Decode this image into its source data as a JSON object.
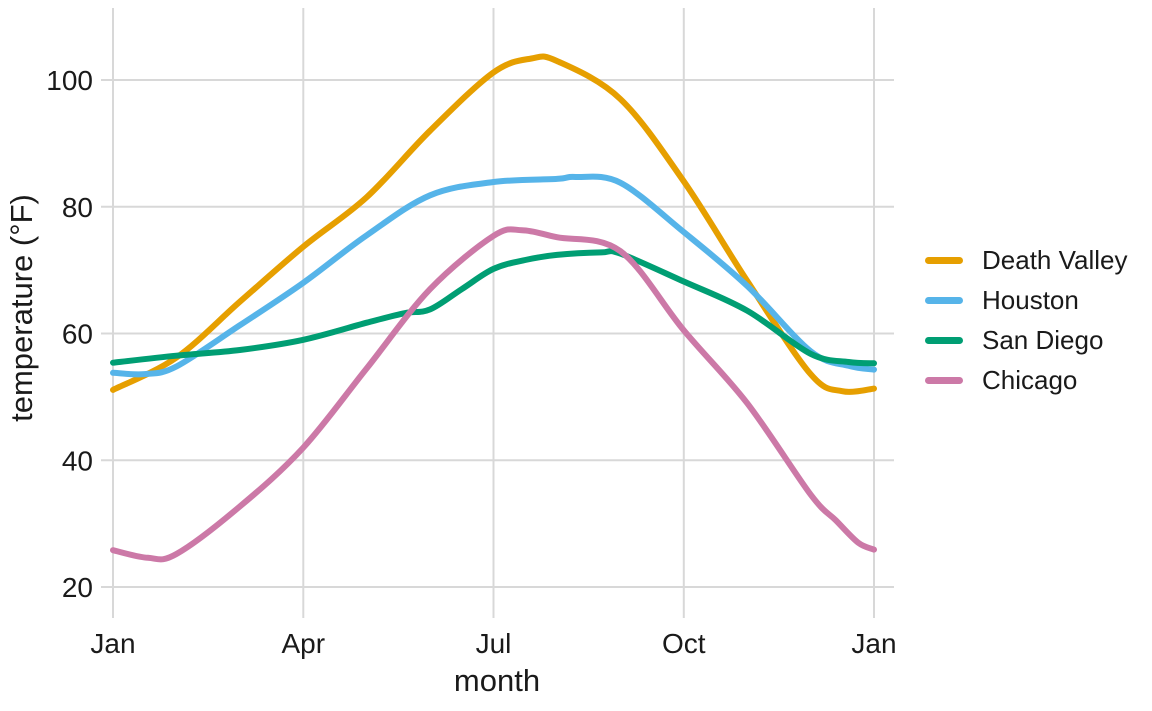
{
  "chart_data": {
    "type": "line",
    "title": "",
    "xlabel": "month",
    "ylabel": "temperature (°F)",
    "x_axis": {
      "note": "x in month units, 0 = Jan 1 through 12 = following Jan 1",
      "ticks": [
        {
          "pos": 0,
          "label": "Jan"
        },
        {
          "pos": 3,
          "label": "Apr"
        },
        {
          "pos": 6,
          "label": "Jul"
        },
        {
          "pos": 9,
          "label": "Oct"
        },
        {
          "pos": 12,
          "label": "Jan"
        }
      ]
    },
    "y_axis": {
      "ticks": [
        20,
        40,
        60,
        80,
        100
      ],
      "range_shown": [
        15,
        111
      ]
    },
    "grid": true,
    "legend_position": "right",
    "style": {
      "grid_color": "#d8d8d8",
      "text_color": "#1a1a1a",
      "background": "#ffffff",
      "line_width": 6
    },
    "series": [
      {
        "name": "Death Valley",
        "color": "#E69F00",
        "points": [
          [
            0,
            51.1
          ],
          [
            1,
            56.2
          ],
          [
            2,
            65.0
          ],
          [
            3,
            73.7
          ],
          [
            4,
            81.5
          ],
          [
            5,
            92.0
          ],
          [
            6,
            101.2
          ],
          [
            6.6,
            103.4
          ],
          [
            7,
            103.0
          ],
          [
            8,
            97.0
          ],
          [
            9,
            84.0
          ],
          [
            10,
            68.3
          ],
          [
            11,
            53.6
          ],
          [
            11.5,
            50.9
          ],
          [
            12,
            51.3
          ]
        ]
      },
      {
        "name": "Houston",
        "color": "#56B4E9",
        "points": [
          [
            0,
            53.8
          ],
          [
            0.5,
            53.6
          ],
          [
            1,
            54.8
          ],
          [
            2,
            61.3
          ],
          [
            3,
            68.0
          ],
          [
            4,
            75.5
          ],
          [
            5,
            81.8
          ],
          [
            6,
            83.9
          ],
          [
            7,
            84.4
          ],
          [
            7.3,
            84.7
          ],
          [
            8,
            83.8
          ],
          [
            9,
            76.0
          ],
          [
            10,
            67.5
          ],
          [
            11,
            57.2
          ],
          [
            11.6,
            54.9
          ],
          [
            12,
            54.3
          ]
        ]
      },
      {
        "name": "San Diego",
        "color": "#009E73",
        "points": [
          [
            0,
            55.4
          ],
          [
            1,
            56.5
          ],
          [
            2,
            57.4
          ],
          [
            3,
            59.0
          ],
          [
            4,
            61.7
          ],
          [
            4.6,
            63.2
          ],
          [
            5,
            63.8
          ],
          [
            5.5,
            67.0
          ],
          [
            6,
            70.2
          ],
          [
            6.5,
            71.6
          ],
          [
            7,
            72.4
          ],
          [
            7.7,
            72.8
          ],
          [
            8,
            72.6
          ],
          [
            9,
            68.2
          ],
          [
            10,
            63.6
          ],
          [
            11,
            56.8
          ],
          [
            11.6,
            55.5
          ],
          [
            12,
            55.3
          ]
        ]
      },
      {
        "name": "Chicago",
        "color": "#CC79A7",
        "points": [
          [
            0,
            25.8
          ],
          [
            0.55,
            24.6
          ],
          [
            1,
            25.2
          ],
          [
            2,
            32.7
          ],
          [
            3,
            42.0
          ],
          [
            4,
            54.5
          ],
          [
            5,
            67.0
          ],
          [
            6,
            75.4
          ],
          [
            6.45,
            76.3
          ],
          [
            7,
            75.2
          ],
          [
            8,
            73.0
          ],
          [
            9,
            60.5
          ],
          [
            10,
            49.0
          ],
          [
            11,
            34.6
          ],
          [
            11.4,
            30.5
          ],
          [
            11.75,
            27.0
          ],
          [
            12,
            25.9
          ]
        ]
      }
    ]
  }
}
